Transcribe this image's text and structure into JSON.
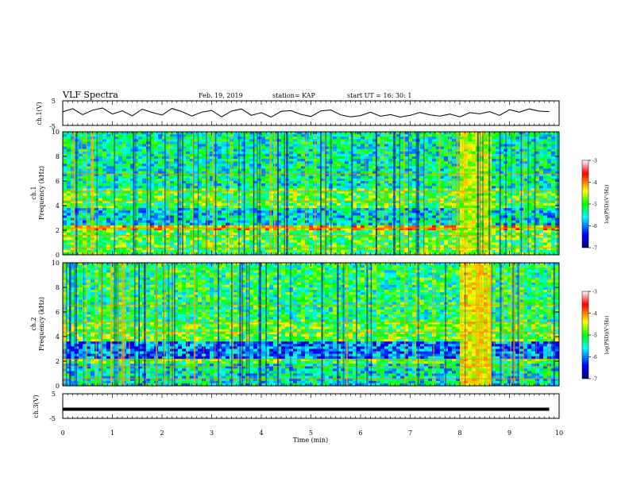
{
  "header": {
    "title": "VLF Spectra",
    "date": "Feb. 19, 2019",
    "station": "station= KAP",
    "start": "start  UT =   16: 30: 1"
  },
  "chart_data": [
    {
      "type": "line",
      "id": "ch1-waveform",
      "ylabel": "ch.1(V)",
      "ylim": [
        -5,
        5
      ],
      "yticks": [
        "5",
        "-5"
      ],
      "xlim": [
        0,
        10
      ],
      "line_color": "#000000",
      "x": [
        0.0,
        0.2,
        0.4,
        0.6,
        0.8,
        1.0,
        1.2,
        1.4,
        1.6,
        1.8,
        2.0,
        2.2,
        2.4,
        2.6,
        2.8,
        3.0,
        3.2,
        3.4,
        3.6,
        3.8,
        4.0,
        4.2,
        4.4,
        4.6,
        4.8,
        5.0,
        5.2,
        5.4,
        5.6,
        5.8,
        6.0,
        6.2,
        6.4,
        6.6,
        6.8,
        7.0,
        7.2,
        7.4,
        7.6,
        7.8,
        8.0,
        8.2,
        8.4,
        8.6,
        8.8,
        9.0,
        9.2,
        9.4,
        9.6,
        9.8
      ],
      "y": [
        0.5,
        1.8,
        -0.6,
        1.2,
        2.1,
        -0.4,
        0.9,
        -1.1,
        1.6,
        0.3,
        -0.8,
        1.9,
        0.6,
        -1.2,
        0.4,
        1.1,
        -1.5,
        0.8,
        1.7,
        -0.9,
        0.2,
        -1.6,
        0.7,
        1.0,
        -0.5,
        -1.4,
        0.9,
        1.3,
        -0.7,
        -1.5,
        -1.0,
        0.4,
        -1.3,
        -0.6,
        -1.6,
        -0.9,
        0.3,
        -0.7,
        -1.2,
        -0.4,
        -1.5,
        0.2,
        -0.3,
        0.6,
        -0.9,
        1.4,
        0.4,
        1.7,
        0.8,
        0.6
      ]
    },
    {
      "type": "heatmap",
      "id": "ch1-spectrogram",
      "ylabel_top": "ch.1",
      "ylabel": "Frequency (kHz)",
      "xlim": [
        0,
        10
      ],
      "ylim": [
        0,
        10
      ],
      "yticks": [
        "0",
        "2",
        "4",
        "6",
        "8",
        "10"
      ],
      "colorbar_label": "log(PSD)(V²/Hz)",
      "colorbar_range": [
        -7,
        -3
      ],
      "colorbar_ticks": [
        "-3",
        "-4",
        "-5",
        "-6",
        "-7"
      ],
      "colormap": [
        "#000080",
        "#0000ff",
        "#00ffff",
        "#00ff00",
        "#ffff00",
        "#ff0000",
        "#ffffff"
      ],
      "bands_khz": [
        {
          "from": 0.0,
          "to": 2.0,
          "level": -5.0
        },
        {
          "from": 2.0,
          "to": 2.5,
          "level": -4.3
        },
        {
          "from": 2.5,
          "to": 3.8,
          "level": -5.6
        },
        {
          "from": 3.8,
          "to": 5.4,
          "level": -5.0
        },
        {
          "from": 5.4,
          "to": 10.0,
          "level": -5.4
        }
      ],
      "event": {
        "from_min": 8.0,
        "to_min": 8.65,
        "level": -4.6
      }
    },
    {
      "type": "heatmap",
      "id": "ch2-spectrogram",
      "ylabel_top": "ch.2",
      "ylabel": "Frequency (kHz)",
      "xlim": [
        0,
        10
      ],
      "ylim": [
        0,
        10
      ],
      "yticks": [
        "0",
        "2",
        "4",
        "6",
        "8",
        "10"
      ],
      "colorbar_label": "log(PSD)(V²/Hz)",
      "colorbar_range": [
        -7,
        -3
      ],
      "colorbar_ticks": [
        "-3",
        "-4",
        "-5",
        "-6",
        "-7"
      ],
      "colormap": [
        "#000080",
        "#0000ff",
        "#00ffff",
        "#00ff00",
        "#ffff00",
        "#ff0000",
        "#ffffff"
      ],
      "bands_khz": [
        {
          "from": 0.0,
          "to": 1.8,
          "level": -5.5
        },
        {
          "from": 1.8,
          "to": 2.3,
          "level": -5.0
        },
        {
          "from": 2.3,
          "to": 3.6,
          "level": -6.0
        },
        {
          "from": 3.6,
          "to": 5.2,
          "level": -4.9
        },
        {
          "from": 5.2,
          "to": 10.0,
          "level": -5.2
        }
      ],
      "event": {
        "from_min": 8.0,
        "to_min": 8.65,
        "level": -4.4
      }
    },
    {
      "type": "line",
      "id": "ch3-waveform",
      "ylabel": "ch.3(V)",
      "ylim": [
        -5,
        5
      ],
      "yticks": [
        "5",
        "-5"
      ],
      "xlim": [
        0,
        10
      ],
      "line_color": "#000000",
      "x": [
        0.0,
        9.8
      ],
      "y": [
        -1.3,
        -1.3
      ]
    }
  ],
  "xaxis": {
    "label": "Time (min)",
    "ticks": [
      "0",
      "1",
      "2",
      "3",
      "4",
      "5",
      "6",
      "7",
      "8",
      "9",
      "10"
    ]
  }
}
